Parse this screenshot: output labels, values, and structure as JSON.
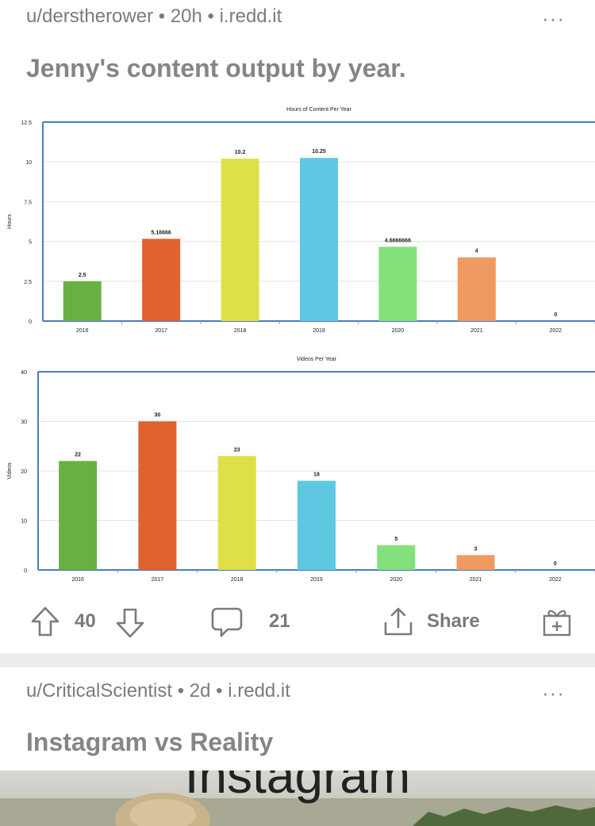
{
  "post1": {
    "meta": "u/derstherower • 20h • i.redd.it",
    "more": "···",
    "title": "Jenny's content output by year.",
    "votes": "40",
    "comments": "21",
    "share": "Share"
  },
  "chart_data": [
    {
      "type": "bar",
      "title": "Hours of Content Per Year",
      "ylabel": "Hours",
      "categories": [
        "2016",
        "2017",
        "2018",
        "2019",
        "2020",
        "2021",
        "2022"
      ],
      "values": [
        2.5,
        5.16666,
        10.2,
        10.25,
        4.6666666,
        4,
        0
      ],
      "value_labels": [
        "2.5",
        "5.16666",
        "10.2",
        "10.25",
        "4.6666666",
        "4",
        "0"
      ],
      "yticks": [
        "0",
        "2.5",
        "5",
        "7.5",
        "10",
        "12.5"
      ],
      "ylim": [
        0,
        12.5
      ],
      "colors": [
        "#68b044",
        "#e0622f",
        "#dfdf48",
        "#5ec8e2",
        "#84e07a",
        "#f09a62",
        "#cccccc"
      ]
    },
    {
      "type": "bar",
      "title": "Videos Per Year",
      "ylabel": "Videos",
      "categories": [
        "2016",
        "2017",
        "2018",
        "2019",
        "2020",
        "2021",
        "2022"
      ],
      "values": [
        22,
        30,
        23,
        18,
        5,
        3,
        0
      ],
      "value_labels": [
        "22",
        "30",
        "23",
        "18",
        "5",
        "3",
        "0"
      ],
      "yticks": [
        "0",
        "10",
        "20",
        "30",
        "40"
      ],
      "ylim": [
        0,
        40
      ],
      "colors": [
        "#68b044",
        "#e0622f",
        "#dfdf48",
        "#5ec8e2",
        "#84e07a",
        "#f09a62",
        "#cccccc"
      ]
    }
  ],
  "post2": {
    "meta": "u/CriticalScientist • 2d • i.redd.it",
    "more": "···",
    "title": "Instagram vs Reality",
    "image_text": "Instagram"
  }
}
